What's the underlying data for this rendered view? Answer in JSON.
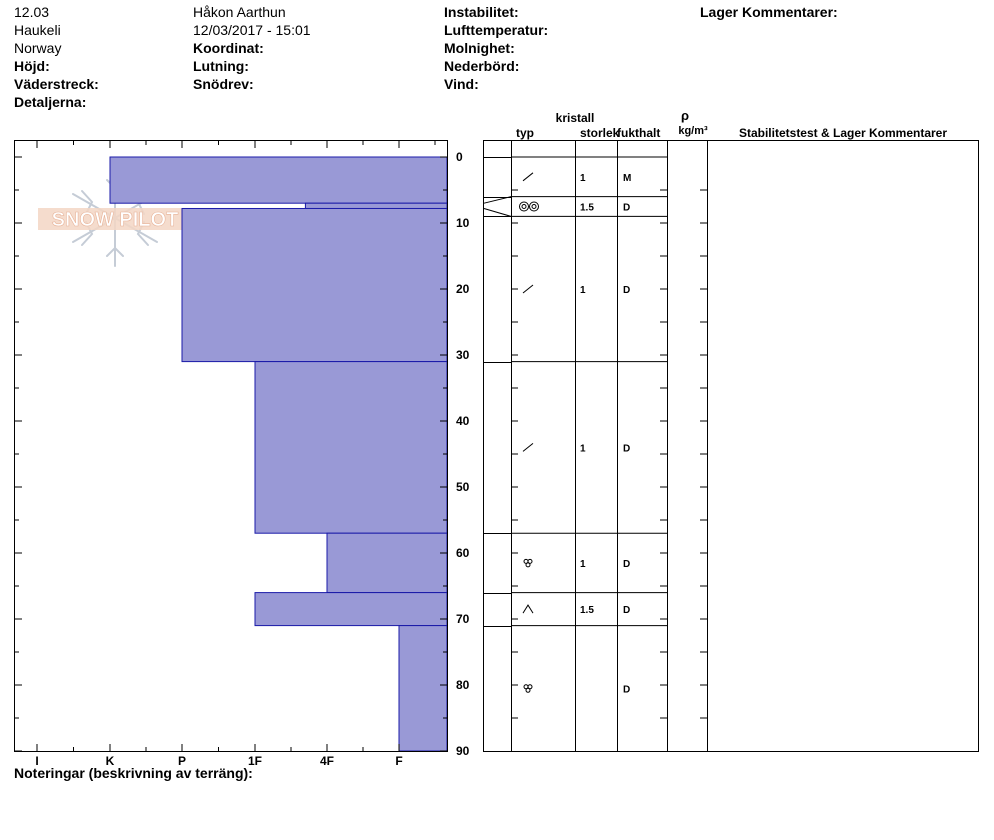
{
  "header": {
    "col1": [
      "12.03",
      "Haukeli",
      "Norway"
    ],
    "hojd": "Höjd:",
    "vaderstreck": "Väderstreck:",
    "detaljerna": "Detaljerna:",
    "observer": "Håkon Aarthun",
    "datetime": "12/03/2017 - 15:01",
    "koordinat": "Koordinat:",
    "lutning": "Lutning:",
    "snodrev": "Snödrev:",
    "instabilitet": "Instabilitet:",
    "lufttemperatur": "Lufttemperatur:",
    "molnighet": "Molnighet:",
    "nederbord": "Nederbörd:",
    "vind": "Vind:",
    "lager_kommentarer": "Lager Kommentarer:"
  },
  "watermark": "SNOW PILOT",
  "columns": {
    "typ": "typ",
    "kristall": "kristall",
    "storlek": "storlek",
    "fukthalt": "fukthalt",
    "rho": "ρ",
    "density_unit": "kg/m³",
    "stability": "Stabilitetstest & Lager Kommentarer"
  },
  "chart_data": {
    "type": "bar",
    "orientation": "horizontal",
    "title": "",
    "xlabel": "",
    "ylabel": "",
    "hardness_categories": [
      "I",
      "K",
      "P",
      "1F",
      "4F",
      "F"
    ],
    "depth_ticks": [
      0,
      10,
      20,
      30,
      40,
      50,
      60,
      70,
      80,
      90
    ],
    "ylim": [
      0,
      90
    ],
    "color": "#9999d6",
    "layers": [
      {
        "top": 0,
        "bottom": 7,
        "hardness": 1.0
      },
      {
        "top": 7,
        "bottom": 7.8,
        "hardness": 3.7
      },
      {
        "top": 7.8,
        "bottom": 31,
        "hardness": 2.0
      },
      {
        "top": 31,
        "bottom": 57,
        "hardness": 3.0
      },
      {
        "top": 57,
        "bottom": 66,
        "hardness": 4.0
      },
      {
        "top": 66,
        "bottom": 71,
        "hardness": 3.0
      },
      {
        "top": 71,
        "bottom": 90,
        "hardness": 5.0
      }
    ]
  },
  "layer_table": {
    "boundaries": [
      0,
      6,
      9,
      31,
      57,
      66,
      71,
      90
    ],
    "rows": [
      {
        "top": 0,
        "bottom": 6,
        "symbol": "decomposing",
        "size": "1",
        "moisture": "M"
      },
      {
        "top": 6,
        "bottom": 9,
        "symbol": "crust",
        "size": "1.5",
        "moisture": "D"
      },
      {
        "top": 9,
        "bottom": 31,
        "symbol": "decomposing",
        "size": "1",
        "moisture": "D"
      },
      {
        "top": 31,
        "bottom": 57,
        "symbol": "decomposing",
        "size": "1",
        "moisture": "D"
      },
      {
        "top": 57,
        "bottom": 66,
        "symbol": "rounded",
        "size": "1",
        "moisture": "D"
      },
      {
        "top": 66,
        "bottom": 71,
        "symbol": "depth-hoar",
        "size": "1.5",
        "moisture": "D"
      },
      {
        "top": 71,
        "bottom": 90,
        "symbol": "rounded",
        "size": "",
        "moisture": "D"
      }
    ]
  },
  "notes_label": "Noteringar (beskrivning av terräng):"
}
